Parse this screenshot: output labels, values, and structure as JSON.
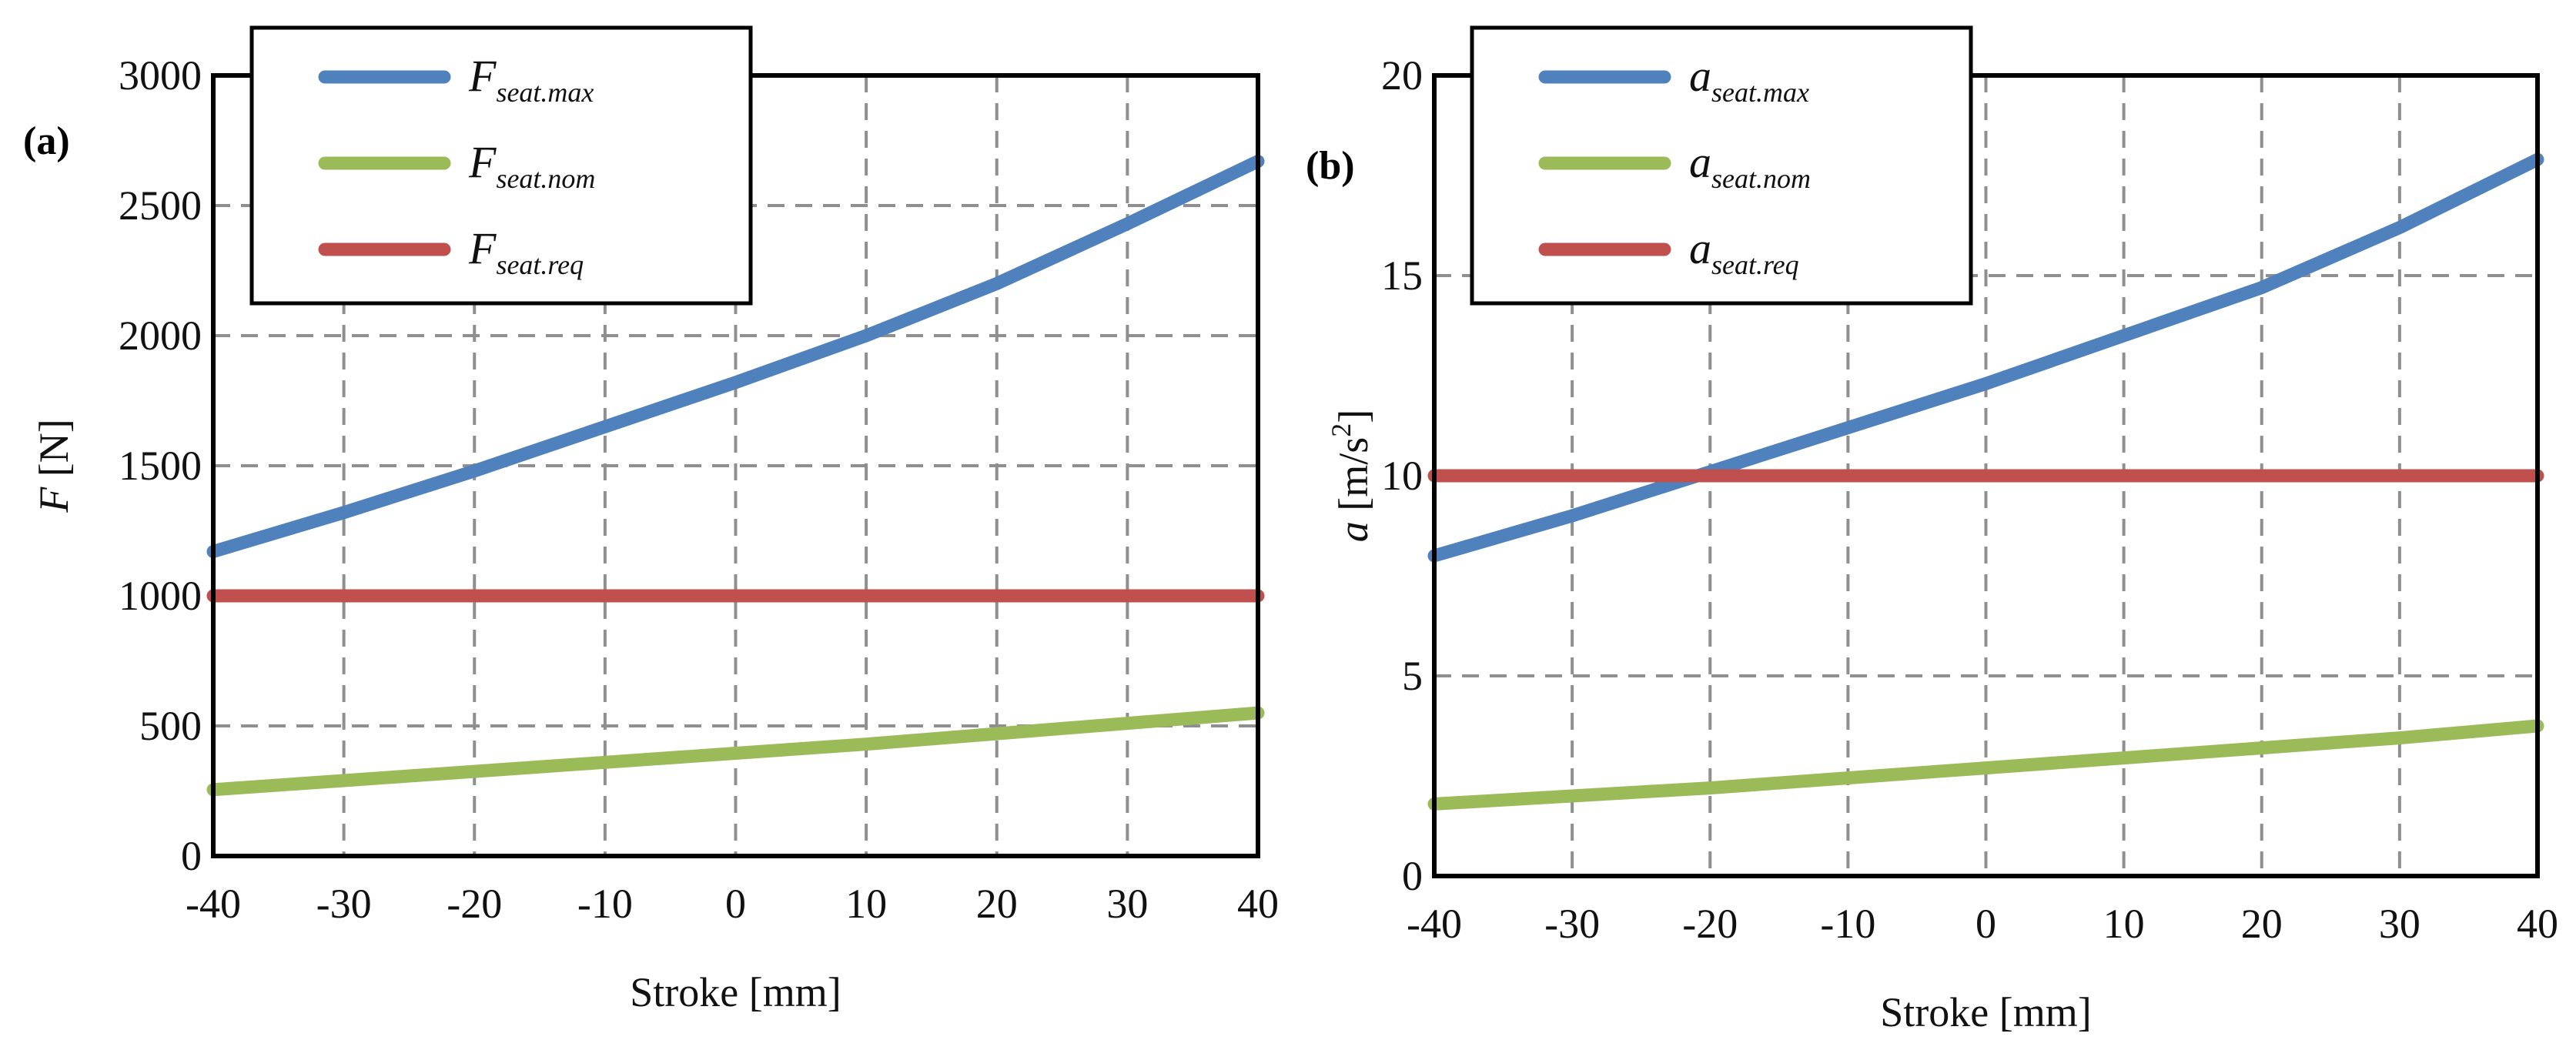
{
  "chart_data": [
    {
      "type": "line",
      "panel_label": "(a)",
      "xlabel": "Stroke [mm]",
      "ylabel": "[N]",
      "ylabel_symbol": "F",
      "xlim": [
        -40,
        40
      ],
      "ylim": [
        0,
        3000
      ],
      "x_ticks": [
        -40,
        -30,
        -20,
        -10,
        0,
        10,
        20,
        30,
        40
      ],
      "y_ticks": [
        0,
        500,
        1000,
        1500,
        2000,
        2500,
        3000
      ],
      "grid": true,
      "legend_position": "top-left",
      "series": [
        {
          "name": "F",
          "sub": "seat.max",
          "color": "#4f81bd",
          "x": [
            -40,
            -30,
            -20,
            -10,
            0,
            10,
            20,
            30,
            40
          ],
          "values": [
            1170,
            1320,
            1480,
            1650,
            1820,
            2000,
            2200,
            2430,
            2670
          ]
        },
        {
          "name": "F",
          "sub": "seat.nom",
          "color": "#9bbb59",
          "x": [
            -40,
            -30,
            -20,
            -10,
            0,
            10,
            20,
            30,
            40
          ],
          "values": [
            255,
            290,
            325,
            360,
            395,
            430,
            470,
            510,
            550
          ]
        },
        {
          "name": "F",
          "sub": "seat.req",
          "color": "#c0504d",
          "x": [
            -40,
            40
          ],
          "values": [
            1000,
            1000
          ]
        }
      ]
    },
    {
      "type": "line",
      "panel_label": "(b)",
      "xlabel": "Stroke [mm]",
      "ylabel": "[m/s",
      "ylabel_symbol": "a",
      "ylabel_sup": "2",
      "ylabel_end": "]",
      "xlim": [
        -40,
        40
      ],
      "ylim": [
        0,
        20
      ],
      "x_ticks": [
        -40,
        -30,
        -20,
        -10,
        0,
        10,
        20,
        30,
        40
      ],
      "y_ticks": [
        0,
        5,
        10,
        15,
        20
      ],
      "grid": true,
      "legend_position": "top-left",
      "series": [
        {
          "name": "a",
          "sub": "seat.max",
          "color": "#4f81bd",
          "x": [
            -40,
            -30,
            -20,
            -10,
            0,
            10,
            20,
            30,
            40
          ],
          "values": [
            8.0,
            9.0,
            10.1,
            11.2,
            12.3,
            13.5,
            14.7,
            16.2,
            17.9
          ]
        },
        {
          "name": "a",
          "sub": "seat.nom",
          "color": "#9bbb59",
          "x": [
            -40,
            -30,
            -20,
            -10,
            0,
            10,
            20,
            30,
            40
          ],
          "values": [
            1.8,
            2.0,
            2.2,
            2.45,
            2.7,
            2.95,
            3.2,
            3.45,
            3.75
          ]
        },
        {
          "name": "a",
          "sub": "seat.req",
          "color": "#c0504d",
          "x": [
            -40,
            40
          ],
          "values": [
            10,
            10
          ]
        }
      ]
    }
  ]
}
